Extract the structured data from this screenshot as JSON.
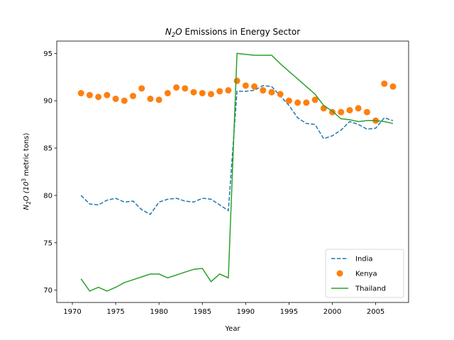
{
  "chart_data": {
    "type": "line",
    "title_main": "N",
    "title_sub": "2",
    "title_tail": "O",
    "title_rest": " Emissions in Energy Sector",
    "xlabel": "Year",
    "ylabel_main": "N",
    "ylabel_sub": "2",
    "ylabel_tail": "O (10",
    "ylabel_sup": "3",
    "ylabel_rest": " metric tons)",
    "xlim": [
      1968.2,
      2008.8
    ],
    "ylim": [
      68.7,
      96.3
    ],
    "xticks": [
      1970,
      1975,
      1980,
      1985,
      1990,
      1995,
      2000,
      2005
    ],
    "yticks": [
      70,
      75,
      80,
      85,
      90,
      95
    ],
    "legend_position": "lower right",
    "grid": false,
    "series": [
      {
        "name": "India",
        "style": "dashed",
        "color": "#1f77b4",
        "x": [
          1971,
          1972,
          1973,
          1974,
          1975,
          1976,
          1977,
          1978,
          1979,
          1980,
          1981,
          1982,
          1983,
          1984,
          1985,
          1986,
          1987,
          1988,
          1989,
          1990,
          1991,
          1992,
          1993,
          1994,
          1995,
          1996,
          1997,
          1998,
          1999,
          2000,
          2001,
          2002,
          2003,
          2004,
          2005,
          2006,
          2007
        ],
        "y": [
          80.0,
          79.1,
          79.0,
          79.5,
          79.7,
          79.3,
          79.4,
          78.5,
          78.0,
          79.3,
          79.6,
          79.7,
          79.4,
          79.3,
          79.7,
          79.6,
          79.0,
          78.4,
          91.0,
          91.0,
          91.1,
          91.6,
          91.5,
          90.5,
          89.5,
          88.2,
          87.6,
          87.5,
          86.0,
          86.3,
          86.9,
          87.8,
          87.5,
          87.0,
          87.1,
          88.2,
          87.9
        ]
      },
      {
        "name": "Kenya",
        "style": "markers",
        "color": "#ff7f0e",
        "x": [
          1971,
          1972,
          1973,
          1974,
          1975,
          1976,
          1977,
          1978,
          1979,
          1980,
          1981,
          1982,
          1983,
          1984,
          1985,
          1986,
          1987,
          1988,
          1989,
          1990,
          1991,
          1992,
          1993,
          1994,
          1995,
          1996,
          1997,
          1998,
          1999,
          2000,
          2001,
          2002,
          2003,
          2004,
          2005,
          2006,
          2007
        ],
        "y": [
          90.8,
          90.6,
          90.4,
          90.6,
          90.2,
          90.0,
          90.5,
          91.3,
          90.2,
          90.1,
          90.8,
          91.4,
          91.3,
          90.9,
          90.8,
          90.7,
          91.0,
          91.1,
          92.1,
          91.6,
          91.5,
          91.1,
          90.9,
          90.7,
          90.0,
          89.8,
          89.8,
          90.1,
          89.2,
          88.8,
          88.8,
          89.0,
          89.2,
          88.8,
          87.9,
          91.8,
          91.5
        ]
      },
      {
        "name": "Thailand",
        "style": "solid",
        "color": "#2ca02c",
        "x": [
          1971,
          1972,
          1973,
          1974,
          1975,
          1976,
          1977,
          1978,
          1979,
          1980,
          1981,
          1982,
          1983,
          1984,
          1985,
          1986,
          1987,
          1988,
          1989,
          1990,
          1991,
          1992,
          1993,
          1994,
          1995,
          1996,
          1997,
          1998,
          1999,
          2000,
          2001,
          2002,
          2003,
          2004,
          2005,
          2006,
          2007
        ],
        "y": [
          71.2,
          69.9,
          70.3,
          69.9,
          70.3,
          70.8,
          71.1,
          71.4,
          71.7,
          71.7,
          71.3,
          71.6,
          71.9,
          72.2,
          72.3,
          70.9,
          71.7,
          71.3,
          95.0,
          94.9,
          94.8,
          94.8,
          94.8,
          93.9,
          93.1,
          92.3,
          91.5,
          90.7,
          89.5,
          88.9,
          88.1,
          88.0,
          87.8,
          87.9,
          87.9,
          87.8,
          87.6
        ]
      }
    ]
  }
}
